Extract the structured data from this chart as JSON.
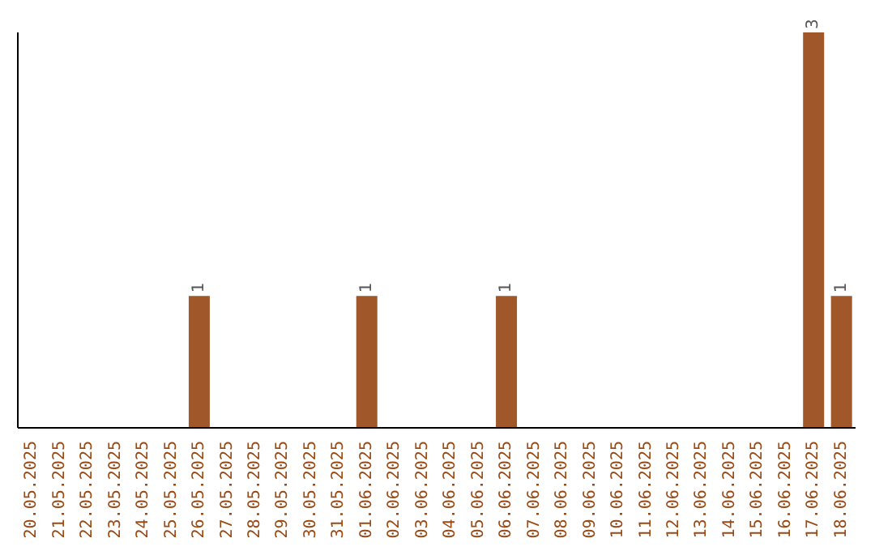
{
  "chart_data": {
    "type": "bar",
    "relative": false,
    "grid": false,
    "legend": false,
    "data_labels": true,
    "value_labels": [
      null,
      null,
      null,
      null,
      null,
      null,
      "1",
      null,
      null,
      null,
      null,
      null,
      "1",
      null,
      null,
      null,
      null,
      "1",
      null,
      null,
      null,
      null,
      null,
      null,
      null,
      null,
      null,
      null,
      "3",
      "1"
    ],
    "categories": [
      "20.05.2025",
      "21.05.2025",
      "22.05.2025",
      "23.05.2025",
      "24.05.2025",
      "25.05.2025",
      "26.05.2025",
      "27.05.2025",
      "28.05.2025",
      "29.05.2025",
      "30.05.2025",
      "31.05.2025",
      "01.06.2025",
      "02.06.2025",
      "03.06.2025",
      "04.06.2025",
      "05.06.2025",
      "06.06.2025",
      "07.06.2025",
      "08.06.2025",
      "09.06.2025",
      "10.06.2025",
      "11.06.2025",
      "12.06.2025",
      "13.06.2025",
      "14.06.2025",
      "15.06.2025",
      "16.06.2025",
      "17.06.2025",
      "18.06.2025"
    ],
    "values": [
      0,
      0,
      0,
      0,
      0,
      0,
      1,
      0,
      0,
      0,
      0,
      0,
      1,
      0,
      0,
      0,
      0,
      1,
      0,
      0,
      0,
      0,
      0,
      0,
      0,
      0,
      0,
      0,
      3,
      1
    ],
    "color": "#a0572a"
  }
}
